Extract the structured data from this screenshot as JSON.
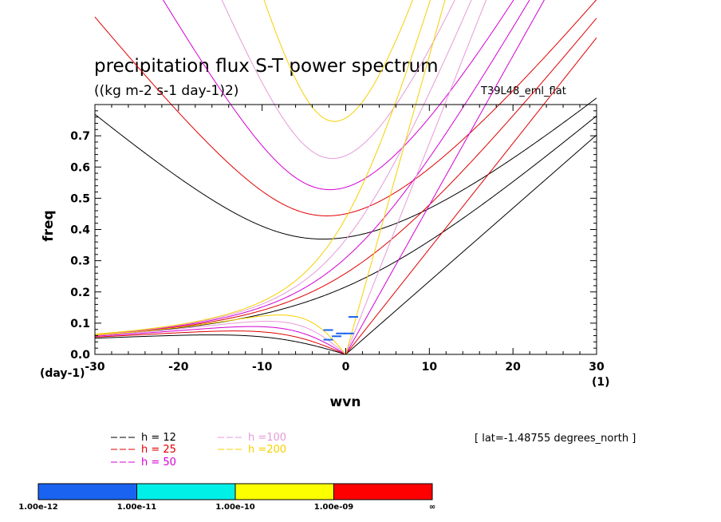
{
  "chart_data": {
    "type": "line",
    "title": "precipitation flux S-T power spectrum",
    "subtitle": "((kg m-2 s-1 day-1)2)",
    "experiment": "T39L48_eml_flat",
    "latitude_note": "[ lat=-1.48755 degrees_north ]",
    "xlabel": "wvn",
    "ylabel": "freq",
    "x_unit_label": "(1)",
    "y_unit_label": "(day-1)",
    "xlim": [
      -30,
      30
    ],
    "ylim": [
      0.0,
      0.8
    ],
    "x_ticks": [
      -30,
      -20,
      -10,
      0,
      10,
      20,
      30
    ],
    "x_tick_labels": [
      "-30",
      "-20",
      "-10",
      "0",
      "10",
      "20",
      "30"
    ],
    "y_ticks": [
      0.0,
      0.1,
      0.2,
      0.3,
      0.4,
      0.5,
      0.6,
      0.7
    ],
    "y_tick_labels": [
      "0.0",
      "0.1",
      "0.2",
      "0.3",
      "0.4",
      "0.5",
      "0.6",
      "0.7"
    ],
    "series": [
      {
        "name": "h = 12",
        "h": 12,
        "color": "#000000"
      },
      {
        "name": "h = 25",
        "h": 25,
        "color": "#e00000"
      },
      {
        "name": "h = 50",
        "h": 50,
        "color": "#d400d4"
      },
      {
        "name": "h =100",
        "h": 100,
        "color": "#e59ad8"
      },
      {
        "name": "h =200",
        "h": 200,
        "color": "#f5d000"
      }
    ],
    "shaded_patches": [
      {
        "x": -2.0,
        "freq": 0.047,
        "color": "#1a63f0"
      },
      {
        "x": -1.0,
        "freq": 0.058,
        "color": "#1a63f0"
      },
      {
        "x": -0.5,
        "freq": 0.067,
        "color": "#1a63f0"
      },
      {
        "x": 0.5,
        "freq": 0.067,
        "color": "#1a63f0"
      },
      {
        "x": -2.0,
        "freq": 0.078,
        "color": "#1a63f0"
      },
      {
        "x": 1.0,
        "freq": 0.12,
        "color": "#1a63f0"
      }
    ],
    "colorbar": {
      "colors": [
        "#1a63f0",
        "#00f0e8",
        "#fbff00",
        "#ff0000"
      ],
      "labels": [
        "1.00e-12",
        "1.00e-11",
        "1.00e-10",
        "1.00e-09",
        "∞"
      ]
    }
  }
}
